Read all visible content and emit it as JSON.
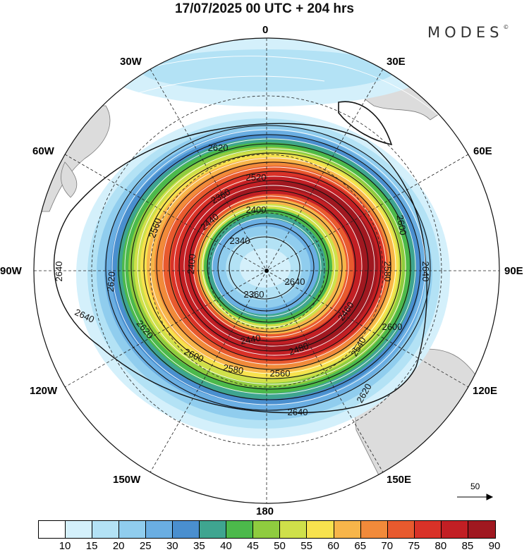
{
  "title": "17/07/2025  00 UTC  + 204 hrs",
  "brand": "MODES",
  "brand_mark": "©",
  "meridian_labels": {
    "m0": "0",
    "m30e": "30E",
    "m60e": "60E",
    "m90e": "90E",
    "m120e": "120E",
    "m150e": "150E",
    "m180": "180",
    "m150w": "150W",
    "m120w": "120W",
    "m90w": "90W",
    "m60w": "60W",
    "m30w": "30W"
  },
  "contour_labels": [
    "2340",
    "2360",
    "2400",
    "2400",
    "2440",
    "2440",
    "2460",
    "2480",
    "2520",
    "2540",
    "2560",
    "2560",
    "2580",
    "2580",
    "2600",
    "2600",
    "2620",
    "2620",
    "2620",
    "2620",
    "2640",
    "2640",
    "2640",
    "2640",
    "2360",
    "2640",
    "2600"
  ],
  "colorbar": {
    "colors": [
      "#ffffff",
      "#d4f0fb",
      "#b3e2f5",
      "#90cdee",
      "#6aaee2",
      "#4a8fcf",
      "#3fa590",
      "#4cb94b",
      "#8fcc3f",
      "#cfe04a",
      "#f7e24e",
      "#f7b54a",
      "#f18a3a",
      "#e85a2e",
      "#d93228",
      "#c21f24",
      "#a01820"
    ],
    "ticks": [
      "10",
      "15",
      "20",
      "25",
      "30",
      "35",
      "40",
      "45",
      "50",
      "55",
      "60",
      "65",
      "70",
      "75",
      "80",
      "85",
      "90"
    ]
  },
  "reference_vector_label": "50"
}
